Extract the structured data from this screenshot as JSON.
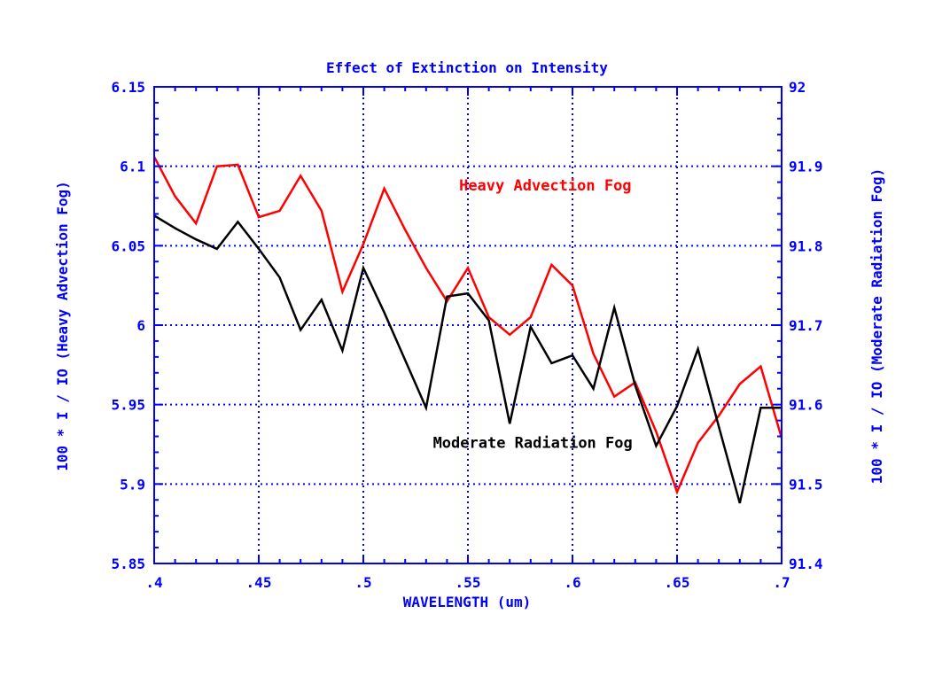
{
  "chart_data": {
    "type": "line",
    "title": "Effect of Extinction on Intensity",
    "xlabel": "WAVELENGTH (um)",
    "ylabel_left": "100 * I / IO (Heavy Advection Fog)",
    "ylabel_right": "100 * I / IO (Moderate Radiation Fog)",
    "xlim": [
      0.4,
      0.7
    ],
    "ylim_left": [
      5.85,
      6.15
    ],
    "ylim_right": [
      91.4,
      92.0
    ],
    "x_ticks": [
      ".4",
      ".45",
      ".5",
      ".55",
      ".6",
      ".65",
      ".7"
    ],
    "y_left_ticks": [
      "5.85",
      "5.9",
      "5.95",
      "6",
      "6.05",
      "6.1",
      "6.15"
    ],
    "y_right_ticks": [
      "91.4",
      "91.5",
      "91.6",
      "91.7",
      "91.8",
      "91.9",
      "92"
    ],
    "grid": true,
    "colors": {
      "axis": "#0000ff",
      "heavy": "#ff0000",
      "moderate": "#000000"
    },
    "series": [
      {
        "name": "Heavy Advection Fog",
        "axis": "left",
        "color": "#ff0000",
        "x": [
          0.4,
          0.41,
          0.42,
          0.43,
          0.44,
          0.45,
          0.46,
          0.47,
          0.48,
          0.49,
          0.5,
          0.51,
          0.52,
          0.53,
          0.54,
          0.55,
          0.56,
          0.57,
          0.58,
          0.59,
          0.6,
          0.61,
          0.62,
          0.63,
          0.64,
          0.65,
          0.66,
          0.67,
          0.68,
          0.69,
          0.7
        ],
        "values": [
          6.106,
          6.081,
          6.064,
          6.1,
          6.101,
          6.068,
          6.072,
          6.094,
          6.072,
          6.021,
          6.051,
          6.086,
          6.06,
          6.036,
          6.015,
          6.036,
          6.005,
          5.994,
          6.005,
          6.038,
          6.025,
          5.982,
          5.955,
          5.964,
          5.933,
          5.895,
          5.926,
          5.943,
          5.963,
          5.974,
          5.929
        ]
      },
      {
        "name": "Moderate Radiation Fog",
        "axis": "right",
        "color": "#000000",
        "x": [
          0.4,
          0.41,
          0.42,
          0.43,
          0.44,
          0.45,
          0.46,
          0.47,
          0.48,
          0.49,
          0.5,
          0.51,
          0.52,
          0.53,
          0.54,
          0.55,
          0.56,
          0.57,
          0.58,
          0.59,
          0.6,
          0.61,
          0.62,
          0.63,
          0.64,
          0.65,
          0.66,
          0.67,
          0.68,
          0.69,
          0.7
        ],
        "values": [
          91.838,
          91.822,
          91.808,
          91.796,
          91.83,
          91.796,
          91.76,
          91.694,
          91.732,
          91.668,
          91.772,
          91.716,
          91.656,
          91.596,
          91.736,
          91.74,
          91.706,
          91.576,
          91.698,
          91.652,
          91.662,
          91.62,
          91.722,
          91.624,
          91.548,
          91.598,
          91.67,
          91.572,
          91.476,
          91.596,
          91.596
        ]
      }
    ],
    "annotations": [
      {
        "text": "Heavy Advection Fog",
        "color": "#ff0000",
        "x": 0.587,
        "y_left": 6.088
      },
      {
        "text": "Moderate Radiation Fog",
        "color": "#000000",
        "x": 0.581,
        "y_left": 5.926
      }
    ]
  }
}
